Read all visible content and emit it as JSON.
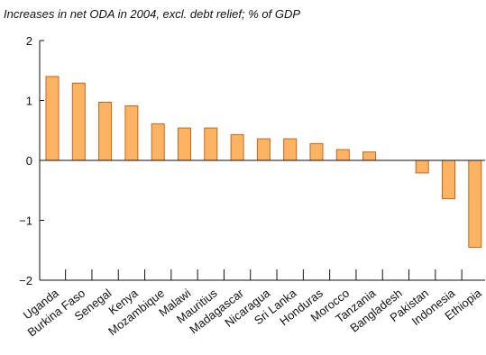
{
  "chart_data": {
    "type": "bar",
    "title": "Increases in net ODA in 2004, excl. debt relief; % of GDP",
    "xlabel": "",
    "ylabel": "",
    "ylim": [
      -2,
      2
    ],
    "yticks": [
      2,
      1,
      0,
      -1,
      -2
    ],
    "ytick_labels": [
      "2",
      "1",
      "0",
      "−1",
      "−2"
    ],
    "grid": false,
    "bar_color": "#FDB462",
    "bar_edge_color": "#C8641E",
    "categories": [
      "Uganda",
      "Burkina Faso",
      "Senegal",
      "Kenya",
      "Mozambique",
      "Malawi",
      "Mauritius",
      "Madagascar",
      "Nicaragua",
      "Sri Lanka",
      "Honduras",
      "Morocco",
      "Tanzania",
      "Bangladesh",
      "Pakistan",
      "Indonesia",
      "Ethiopia"
    ],
    "values": [
      1.4,
      1.29,
      0.97,
      0.91,
      0.61,
      0.54,
      0.54,
      0.43,
      0.36,
      0.36,
      0.28,
      0.18,
      0.14,
      0.0,
      -0.21,
      -0.64,
      -1.45
    ]
  }
}
